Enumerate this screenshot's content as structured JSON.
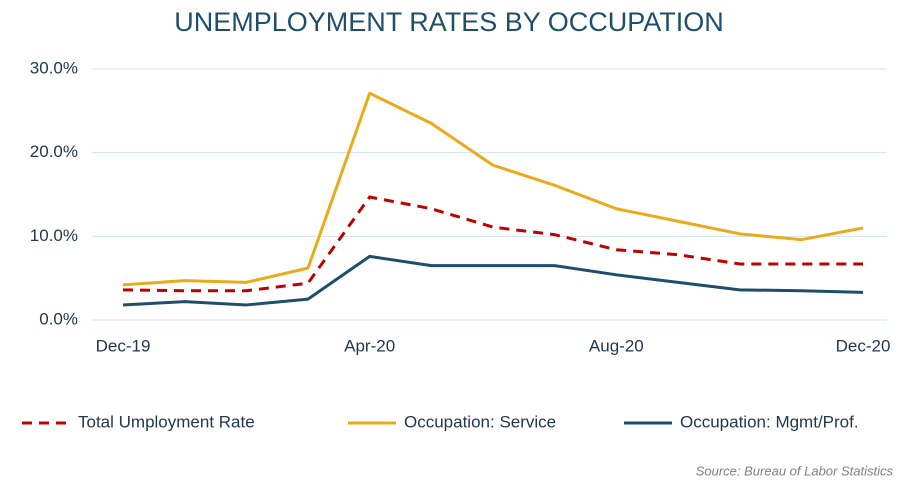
{
  "chart_data": {
    "type": "line",
    "title": "UNEMPLOYMENT RATES BY OCCUPATION",
    "source": "Source: Bureau of Labor Statistics",
    "categories": [
      "Dec-19",
      null,
      null,
      null,
      "Apr-20",
      null,
      null,
      null,
      "Aug-20",
      null,
      null,
      null,
      "Dec-20"
    ],
    "series": [
      {
        "name": "Total Umployment Rate",
        "color": "#c00000",
        "dash": true,
        "values": [
          3.6,
          3.5,
          3.5,
          4.4,
          14.7,
          13.3,
          11.1,
          10.2,
          8.4,
          7.8,
          6.7,
          6.7,
          6.7
        ]
      },
      {
        "name": "Occupation: Service",
        "color": "#e9ab1b",
        "dash": false,
        "values": [
          4.2,
          4.7,
          4.5,
          6.2,
          27.1,
          23.5,
          18.5,
          16.1,
          13.3,
          11.8,
          10.3,
          9.6,
          11.0
        ]
      },
      {
        "name": "Occupation:  Mgmt/Prof.",
        "color": "#1f4e6b",
        "dash": false,
        "values": [
          1.8,
          2.2,
          1.8,
          2.5,
          7.6,
          6.5,
          6.5,
          6.5,
          5.4,
          4.5,
          3.6,
          3.5,
          3.3
        ]
      }
    ],
    "ylim": [
      0,
      30
    ],
    "yticks": [
      {
        "value": 0,
        "label": "0.0%"
      },
      {
        "value": 10,
        "label": "10.0%"
      },
      {
        "value": 20,
        "label": "20.0%"
      },
      {
        "value": 30,
        "label": "30.0%"
      }
    ],
    "grid": true,
    "legend": "bottom"
  }
}
